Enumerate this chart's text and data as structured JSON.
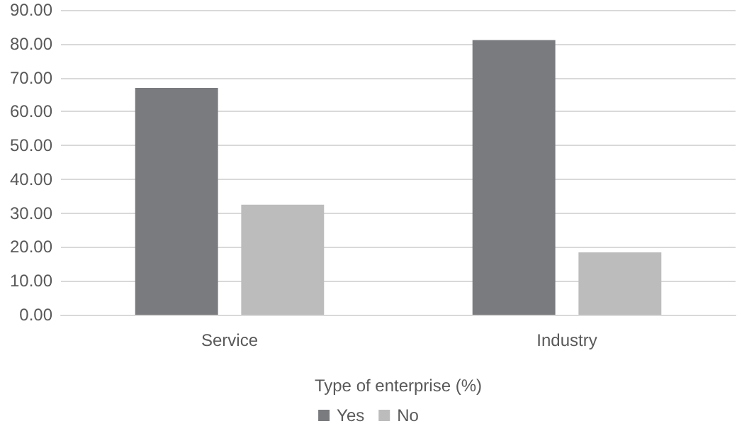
{
  "chart_data": {
    "type": "bar",
    "xlabel": "Type of enterprise (%)",
    "categories": [
      "Service",
      "Industry"
    ],
    "series": [
      {
        "name": "Yes",
        "color": "#7a7b7e",
        "values": [
          67.0,
          81.1
        ]
      },
      {
        "name": "No",
        "color": "#bcbcbd",
        "values": [
          32.5,
          18.4
        ]
      }
    ],
    "ylim": [
      0,
      90
    ],
    "yticks": [
      {
        "value": 0,
        "label": "0.00"
      },
      {
        "value": 10,
        "label": "10.00"
      },
      {
        "value": 20,
        "label": "20.00"
      },
      {
        "value": 30,
        "label": "30.00"
      },
      {
        "value": 40,
        "label": "40.00"
      },
      {
        "value": 50,
        "label": "50.00"
      },
      {
        "value": 60,
        "label": "60.00"
      },
      {
        "value": 70,
        "label": "70.00"
      },
      {
        "value": 80,
        "label": "80.00"
      },
      {
        "value": 90,
        "label": "90.00"
      }
    ],
    "grid": "y",
    "legend": "bottom"
  }
}
